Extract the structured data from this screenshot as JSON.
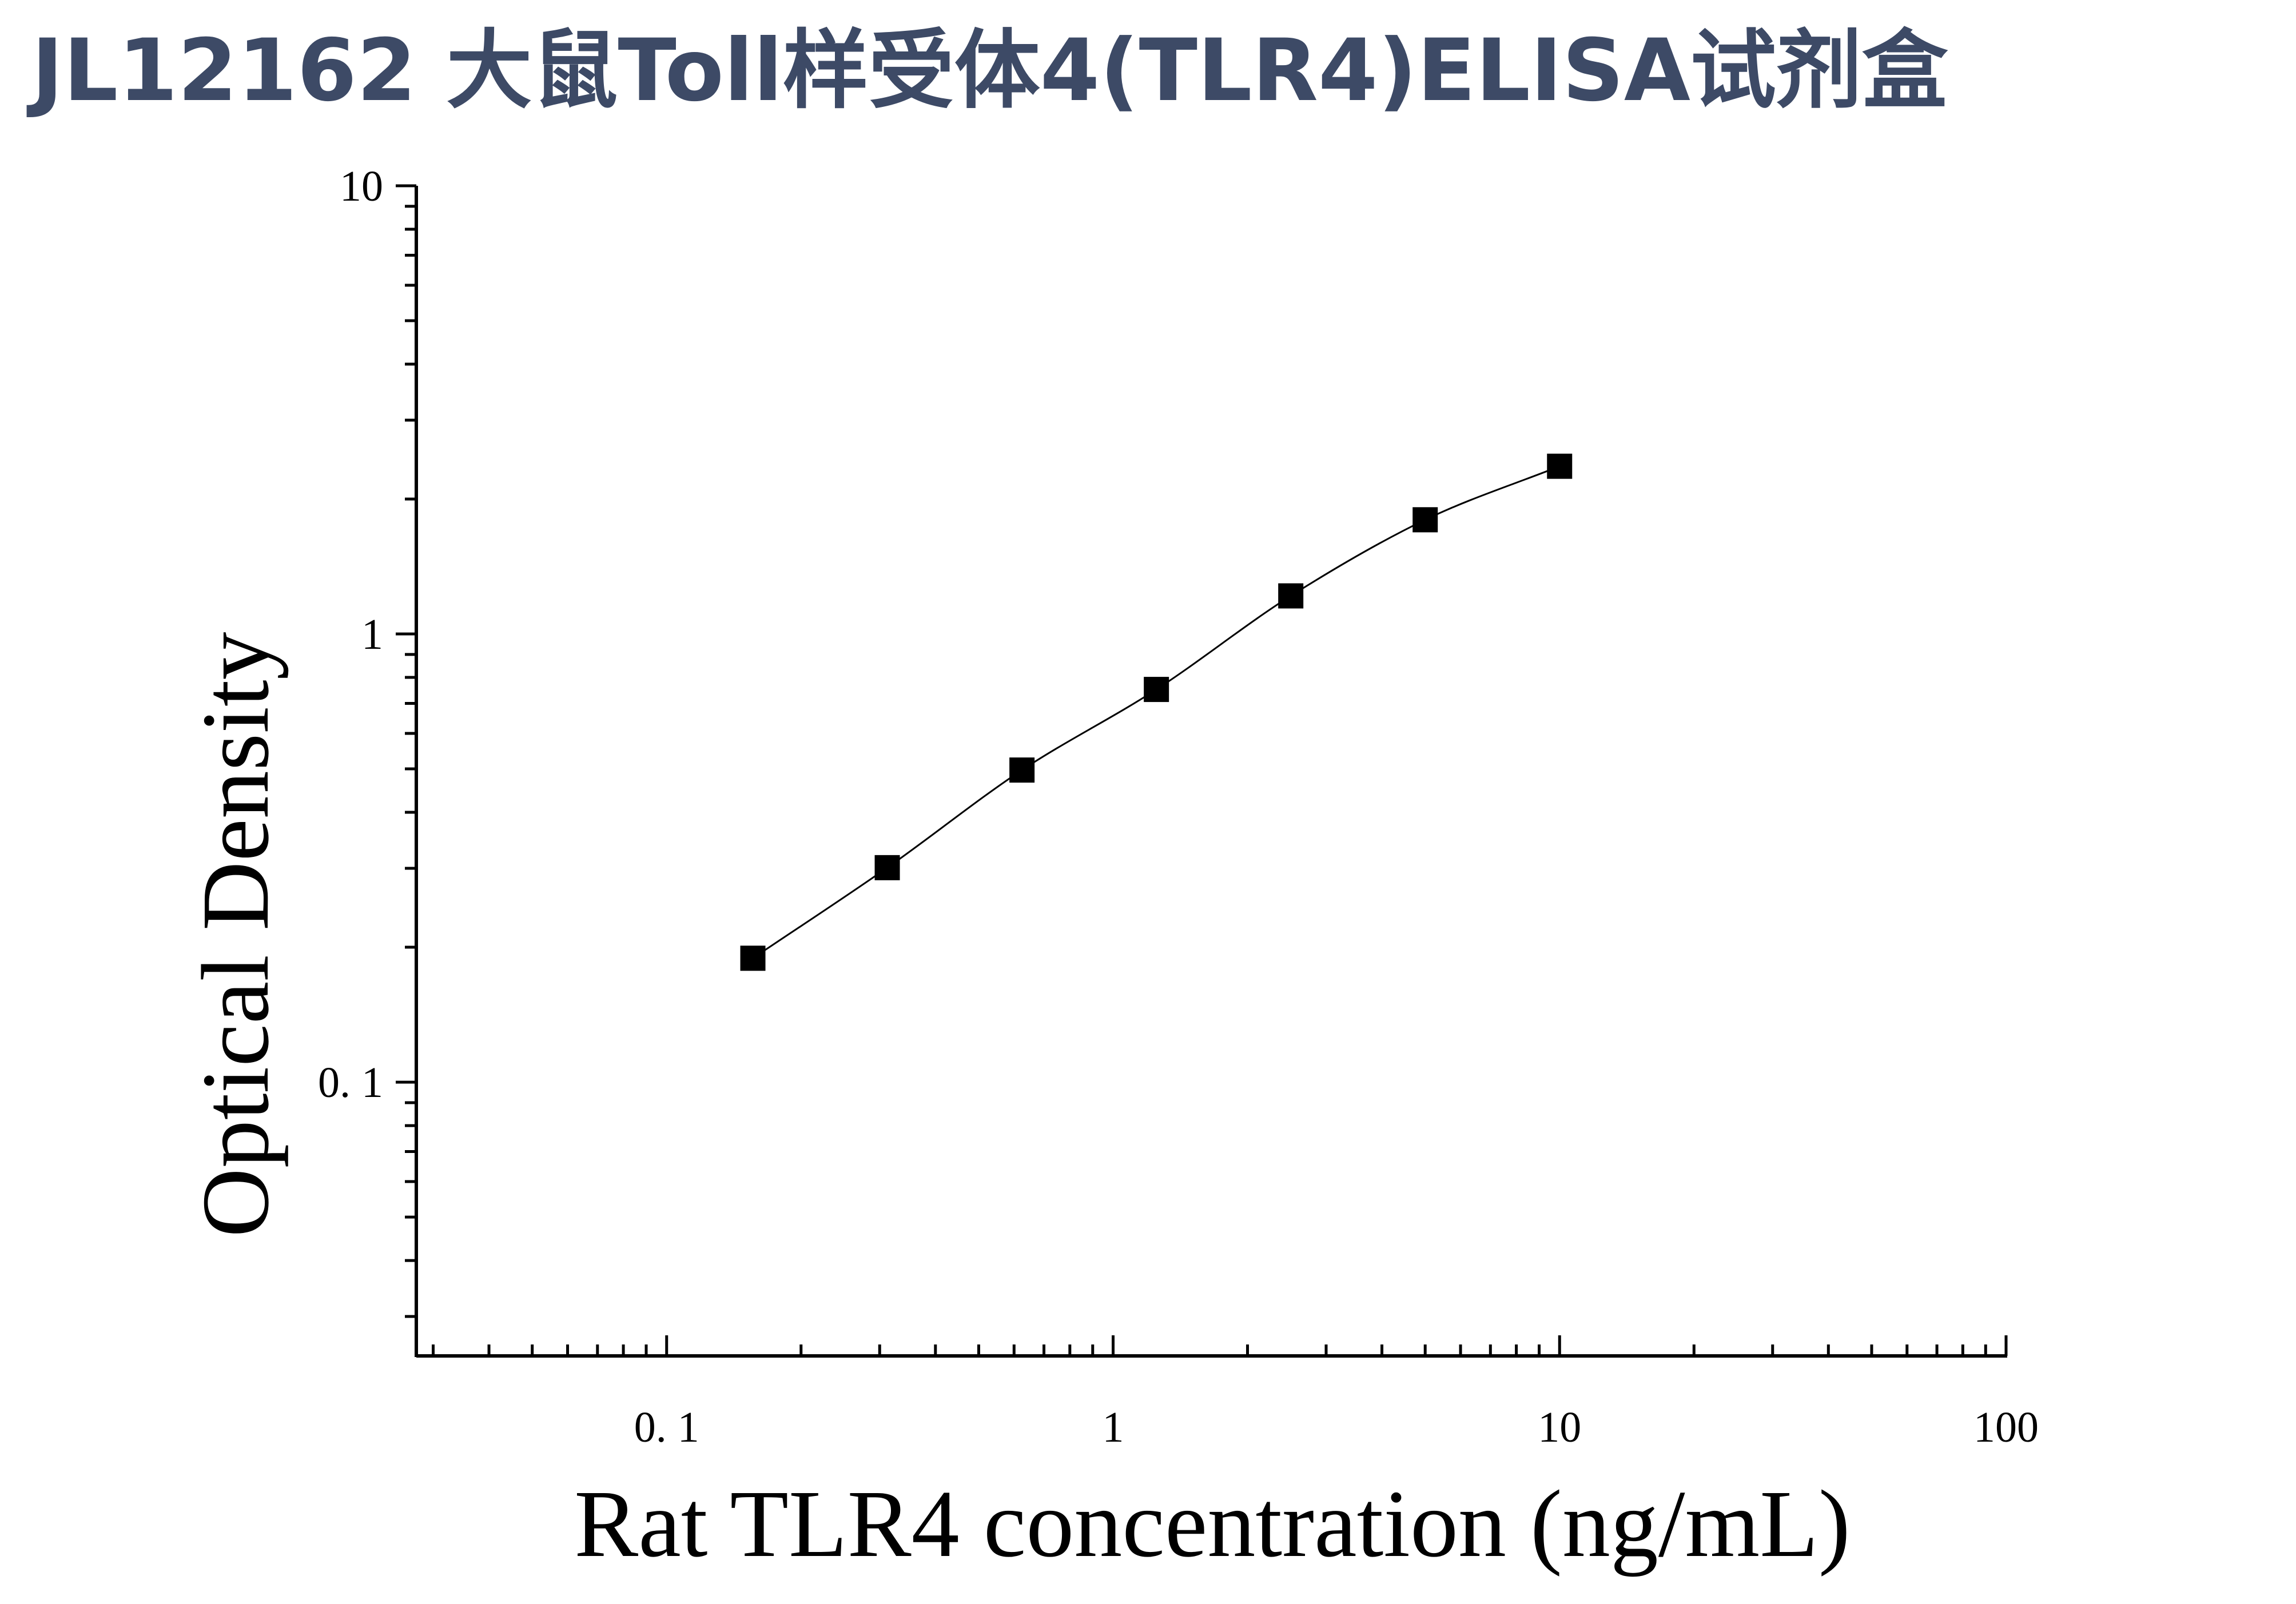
{
  "title": "JL12162 大鼠Toll样受体4(TLR4)ELISA试剂盒",
  "chart_data": {
    "type": "scatter",
    "title": "JL12162 大鼠Toll样受体4(TLR4)ELISA试剂盒",
    "xlabel": "Rat TLR4 concentration (ng/mL)",
    "ylabel": "Optical Density",
    "xscale": "log",
    "yscale": "log",
    "xlim": [
      0.0275,
      100
    ],
    "ylim": [
      0.0245,
      10
    ],
    "x_ticks": [
      {
        "value": 0.1,
        "label": "0. 1"
      },
      {
        "value": 1,
        "label": "1"
      },
      {
        "value": 10,
        "label": "10"
      },
      {
        "value": 100,
        "label": "100"
      }
    ],
    "y_ticks": [
      {
        "value": 0.1,
        "label": "0. 1"
      },
      {
        "value": 1,
        "label": "1"
      },
      {
        "value": 10,
        "label": "10"
      }
    ],
    "grid": false,
    "legend": "none",
    "marker": "square",
    "marker_color": "#000000",
    "fit_curve": true,
    "series": [
      {
        "x": [
          0.156,
          0.312,
          0.625,
          1.25,
          2.5,
          5,
          10
        ],
        "y": [
          0.189,
          0.301,
          0.497,
          0.752,
          1.216,
          1.798,
          2.367
        ]
      }
    ]
  }
}
